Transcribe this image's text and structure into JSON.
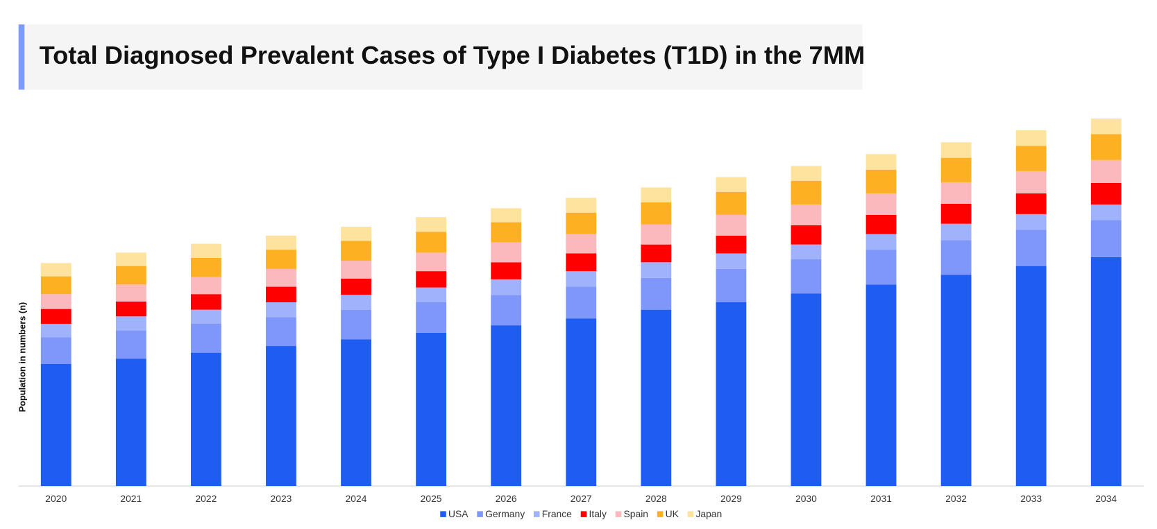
{
  "chart_data": {
    "type": "bar",
    "stacked": true,
    "title": "Total Diagnosed Prevalent Cases of Type I Diabetes (T1D) in the 7MM",
    "y_label": "Population in numbers (n)",
    "categories": [
      "2020",
      "2021",
      "2022",
      "2023",
      "2024",
      "2025",
      "2026",
      "2027",
      "2028",
      "2029",
      "2030",
      "2031",
      "2032",
      "2033",
      "2034"
    ],
    "series": [
      {
        "name": "USA",
        "color": "#1f5cf2",
        "values": [
          165,
          172,
          180,
          189,
          198,
          207,
          217,
          226,
          238,
          248,
          260,
          272,
          285,
          297,
          309
        ]
      },
      {
        "name": "Germany",
        "color": "#7f96fb",
        "values": [
          36,
          38,
          39,
          39,
          40,
          41,
          41,
          43,
          43,
          45,
          46,
          47,
          47,
          49,
          50
        ]
      },
      {
        "name": "France",
        "color": "#a0b2fb",
        "values": [
          18,
          19,
          19,
          20,
          20,
          20,
          21,
          21,
          21,
          21,
          20,
          21,
          22,
          21,
          21
        ]
      },
      {
        "name": "Italy",
        "color": "#ff0000",
        "values": [
          20,
          20,
          21,
          21,
          22,
          22,
          23,
          24,
          24,
          24,
          26,
          26,
          27,
          28,
          29
        ]
      },
      {
        "name": "Spain",
        "color": "#fbb8bd",
        "values": [
          20,
          23,
          23,
          24,
          24,
          25,
          27,
          26,
          27,
          28,
          28,
          29,
          29,
          30,
          31
        ]
      },
      {
        "name": "UK",
        "color": "#fdb122",
        "values": [
          24,
          25,
          26,
          26,
          27,
          28,
          27,
          29,
          30,
          31,
          32,
          32,
          33,
          34,
          35
        ]
      },
      {
        "name": "Japan",
        "color": "#fde39d",
        "values": [
          18,
          18,
          19,
          19,
          19,
          20,
          19,
          20,
          20,
          20,
          20,
          21,
          21,
          21,
          21
        ]
      }
    ],
    "ylim": [
      0,
      520
    ],
    "legend": "bottom"
  }
}
